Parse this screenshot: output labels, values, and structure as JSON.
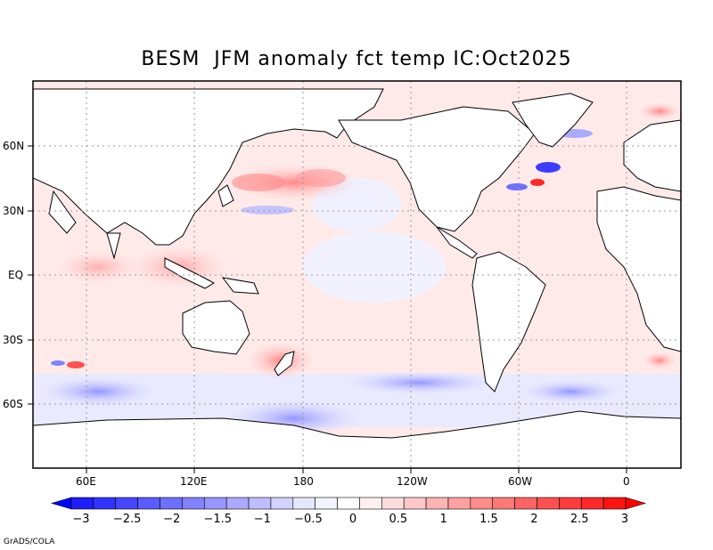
{
  "title": "BESM  JFM anomaly fct temp IC:Oct2025",
  "credit": "GrADS/COLA",
  "latitude_labels": [
    "60N",
    "30N",
    "EQ",
    "30S",
    "60S"
  ],
  "longitude_labels": [
    "60E",
    "120E",
    "180",
    "120W",
    "60W",
    "0"
  ],
  "colorbar": {
    "tick_labels": [
      "−3",
      "−2.5",
      "−2",
      "−1.5",
      "−1",
      "−0.5",
      "0",
      "0.5",
      "1",
      "1.5",
      "2",
      "2.5",
      "3"
    ],
    "colors": [
      "#1e1eff",
      "#3232ff",
      "#4646ff",
      "#5a5aff",
      "#6e6eff",
      "#8282ff",
      "#9696ff",
      "#aaaaff",
      "#bebeff",
      "#d2d2ff",
      "#e6e6ff",
      "#f4f4ff",
      "#ffffff",
      "#fff0f0",
      "#ffdcdc",
      "#ffc8c8",
      "#ffb4b4",
      "#ffa0a0",
      "#ff8c8c",
      "#ff7878",
      "#ff6464",
      "#ff5050",
      "#ff3c3c",
      "#ff2828",
      "#ff1414"
    ]
  }
}
